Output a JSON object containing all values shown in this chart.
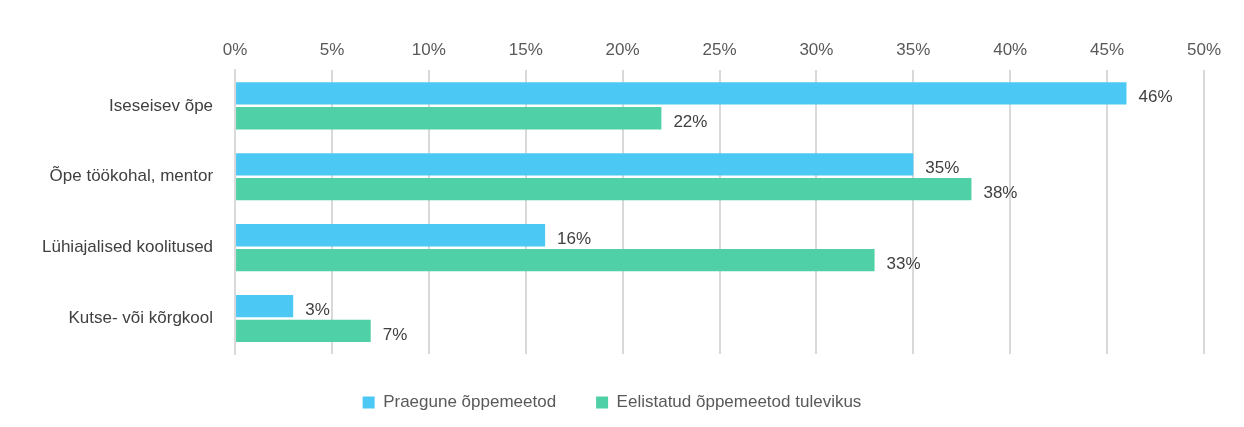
{
  "chart_data": {
    "type": "bar",
    "orientation": "horizontal",
    "categories": [
      "Iseseisev õpe",
      "Õpe töökohal, mentor",
      "Lühiajalised koolitused",
      "Kutse- või kõrgkool"
    ],
    "series": [
      {
        "name": "Praegune õppemeetod",
        "color": "#4cc8f4",
        "values": [
          46,
          35,
          16,
          3
        ],
        "value_labels": [
          "46%",
          "35%",
          "16%",
          "3%"
        ]
      },
      {
        "name": "Eelistatud õppemeetod tulevikus",
        "color": "#4fd0a6",
        "values": [
          22,
          38,
          33,
          7
        ],
        "value_labels": [
          "22%",
          "38%",
          "33%",
          "7%"
        ]
      }
    ],
    "xlim": [
      0,
      50
    ],
    "xticks": [
      {
        "value": 0,
        "label": "0%"
      },
      {
        "value": 5,
        "label": "5%"
      },
      {
        "value": 10,
        "label": "10%"
      },
      {
        "value": 15,
        "label": "15%"
      },
      {
        "value": 20,
        "label": "20%"
      },
      {
        "value": 25,
        "label": "25%"
      },
      {
        "value": 30,
        "label": "30%"
      },
      {
        "value": 35,
        "label": "35%"
      },
      {
        "value": 40,
        "label": "40%"
      },
      {
        "value": 45,
        "label": "45%"
      },
      {
        "value": 50,
        "label": "50%"
      }
    ],
    "grid": "x",
    "legend": "bottom"
  }
}
